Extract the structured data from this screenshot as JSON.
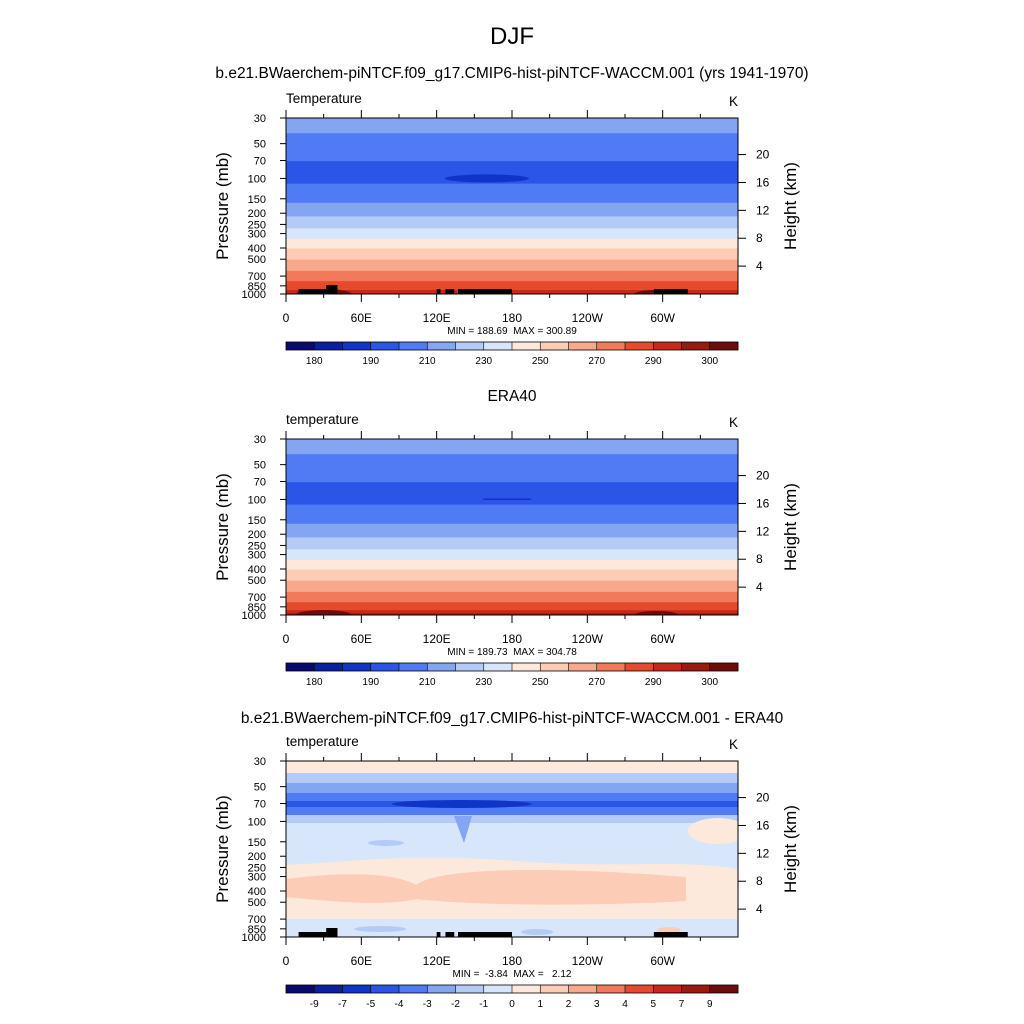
{
  "figure": {
    "title": "DJF",
    "case_title": "b.e21.BWaerchem-piNTCF.f09_g17.CMIP6-hist-piNTCF-WACCM.001 (yrs 1941-1970)",
    "obs_title": "ERA40",
    "diff_title": "b.e21.BWaerchem-piNTCF.f09_g17.CMIP6-hist-piNTCF-WACCM.001 - ERA40"
  },
  "chart_data": [
    {
      "type": "heatmap",
      "id": "p1",
      "variable": "Temperature",
      "units": "K",
      "xlabel": "",
      "ylabel": "Pressure (mb)",
      "y2label": "Height (km)",
      "xticks": [
        "0",
        "60E",
        "120E",
        "180",
        "120W",
        "60W"
      ],
      "yticks": [
        "30",
        "50",
        "70",
        "100",
        "150",
        "200",
        "250",
        "300",
        "400",
        "500",
        "700",
        "850",
        "1000"
      ],
      "y2ticks": [
        "20",
        "16",
        "12",
        "8",
        "4"
      ],
      "stats": "MIN = 188.69  MAX = 300.89",
      "min": 188.69,
      "max": 300.89,
      "colorbar": {
        "labels": [
          "180",
          "190",
          "210",
          "230",
          "250",
          "270",
          "290",
          "300"
        ],
        "colors": [
          "#0a0a6e",
          "#0c1fa0",
          "#1034c8",
          "#2a55e6",
          "#4f7cf4",
          "#84a5f2",
          "#b4cbf7",
          "#d7e6fb",
          "#fde9dc",
          "#fcccb6",
          "#f9a98b",
          "#f27a5a",
          "#e44a2b",
          "#c8281a",
          "#9a1a10",
          "#6e0c0c"
        ]
      },
      "profile": [
        {
          "p": 30,
          "v": 217
        },
        {
          "p": 50,
          "v": 205
        },
        {
          "p": 70,
          "v": 200
        },
        {
          "p": 100,
          "v": 198
        },
        {
          "p": 150,
          "v": 207
        },
        {
          "p": 200,
          "v": 218
        },
        {
          "p": 250,
          "v": 227
        },
        {
          "p": 300,
          "v": 235
        },
        {
          "p": 400,
          "v": 250
        },
        {
          "p": 500,
          "v": 260
        },
        {
          "p": 700,
          "v": 275
        },
        {
          "p": 850,
          "v": 285
        },
        {
          "p": 1000,
          "v": 296
        }
      ],
      "topography": [
        [
          10,
          35
        ],
        [
          32,
          41
        ],
        [
          120,
          123
        ],
        [
          127,
          134
        ],
        [
          137,
          180
        ],
        [
          293,
          320
        ]
      ]
    },
    {
      "type": "heatmap",
      "id": "p2",
      "variable": "temperature",
      "units": "K",
      "xlabel": "",
      "ylabel": "Pressure (mb)",
      "y2label": "Height (km)",
      "xticks": [
        "0",
        "60E",
        "120E",
        "180",
        "120W",
        "60W"
      ],
      "yticks": [
        "30",
        "50",
        "70",
        "100",
        "150",
        "200",
        "250",
        "300",
        "400",
        "500",
        "700",
        "850",
        "1000"
      ],
      "y2ticks": [
        "20",
        "16",
        "12",
        "8",
        "4"
      ],
      "stats": "MIN = 189.73  MAX = 304.78",
      "min": 189.73,
      "max": 304.78,
      "colorbar": {
        "labels": [
          "180",
          "190",
          "210",
          "230",
          "250",
          "270",
          "290",
          "300"
        ],
        "colors": [
          "#0a0a6e",
          "#0c1fa0",
          "#1034c8",
          "#2a55e6",
          "#4f7cf4",
          "#84a5f2",
          "#b4cbf7",
          "#d7e6fb",
          "#fde9dc",
          "#fcccb6",
          "#f9a98b",
          "#f27a5a",
          "#e44a2b",
          "#c8281a",
          "#9a1a10",
          "#6e0c0c"
        ]
      },
      "profile": [
        {
          "p": 30,
          "v": 217
        },
        {
          "p": 50,
          "v": 205
        },
        {
          "p": 70,
          "v": 200
        },
        {
          "p": 100,
          "v": 198
        },
        {
          "p": 150,
          "v": 207
        },
        {
          "p": 200,
          "v": 218
        },
        {
          "p": 250,
          "v": 227
        },
        {
          "p": 300,
          "v": 235
        },
        {
          "p": 400,
          "v": 250
        },
        {
          "p": 500,
          "v": 260
        },
        {
          "p": 700,
          "v": 275
        },
        {
          "p": 850,
          "v": 286
        },
        {
          "p": 1000,
          "v": 298
        }
      ],
      "topography": []
    },
    {
      "type": "heatmap",
      "id": "p3",
      "variable": "temperature",
      "units": "K",
      "xlabel": "",
      "ylabel": "Pressure (mb)",
      "y2label": "Height (km)",
      "xticks": [
        "0",
        "60E",
        "120E",
        "180",
        "120W",
        "60W"
      ],
      "yticks": [
        "30",
        "50",
        "70",
        "100",
        "150",
        "200",
        "250",
        "300",
        "400",
        "500",
        "700",
        "850",
        "1000"
      ],
      "y2ticks": [
        "20",
        "16",
        "12",
        "8",
        "4"
      ],
      "stats": "MIN =  -3.84  MAX =   2.12",
      "min": -3.84,
      "max": 2.12,
      "colorbar": {
        "labels": [
          "-9",
          "-7",
          "-5",
          "-4",
          "-3",
          "-2",
          "-1",
          "0",
          "1",
          "2",
          "3",
          "4",
          "5",
          "7",
          "9"
        ],
        "colors": [
          "#0a0a6e",
          "#0c1fa0",
          "#1034c8",
          "#2a55e6",
          "#4f7cf4",
          "#84a5f2",
          "#b4cbf7",
          "#d7e6fb",
          "#fde9dc",
          "#fcccb6",
          "#f9a98b",
          "#f27a5a",
          "#e44a2b",
          "#c8281a",
          "#9a1a10",
          "#6e0c0c"
        ]
      },
      "topography": [
        [
          10,
          35
        ],
        [
          32,
          41
        ],
        [
          120,
          123
        ],
        [
          127,
          134
        ],
        [
          137,
          180
        ],
        [
          293,
          320
        ]
      ]
    }
  ]
}
